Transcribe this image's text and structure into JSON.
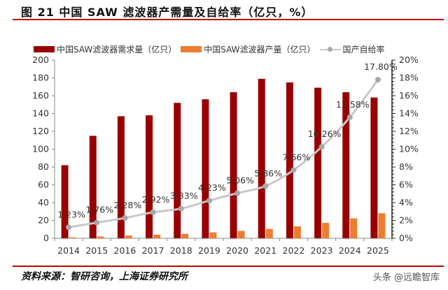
{
  "header": {
    "title": "图 21 中国 SAW 滤波器产需量及自给率（亿只，%）"
  },
  "footer": {
    "source": "资料来源：智研咨询，上海证券研究所",
    "watermark": "头条 @远瞻智库"
  },
  "colors": {
    "demand": "#990000",
    "production": "#ed7d31",
    "rate": "#c8c8c8",
    "rate_marker": "#a8a8a8",
    "rule": "#c00000"
  },
  "chart_data": {
    "type": "bar",
    "title": "图 21 中国 SAW 滤波器产需量及自给率（亿只，%）",
    "categories": [
      "2014",
      "2015",
      "2016",
      "2017",
      "2018",
      "2019",
      "2020",
      "2021",
      "2022",
      "2023",
      "2024",
      "2025"
    ],
    "series": [
      {
        "name": "中国SAW滤波器需求量（亿只）",
        "type": "bar",
        "axis": "left",
        "values": [
          82,
          115,
          137,
          138,
          152,
          156,
          164,
          179,
          175,
          169,
          164,
          158
        ]
      },
      {
        "name": "中国SAW滤波器产量（亿只）",
        "type": "bar",
        "axis": "left",
        "values": [
          1.0,
          2.0,
          3.1,
          4.0,
          5.0,
          6.6,
          8.3,
          10.5,
          13.4,
          17.3,
          22.3,
          28.1
        ]
      },
      {
        "name": "国产自给率",
        "type": "line",
        "axis": "right",
        "values": [
          1.23,
          1.76,
          2.28,
          2.92,
          3.33,
          4.23,
          5.06,
          5.86,
          7.66,
          10.26,
          13.58,
          17.8
        ],
        "labels": [
          "1.23%",
          "1.76%",
          "2.28%",
          "2.92%",
          "3.33%",
          "4.23%",
          "5.06%",
          "5.86%",
          "7.66%",
          "10.26%",
          "13.58%",
          "17.80%"
        ]
      }
    ],
    "left_axis": {
      "ylim": [
        0,
        200
      ],
      "ticks": [
        0,
        20,
        40,
        60,
        80,
        100,
        120,
        140,
        160,
        180,
        200
      ],
      "tick_labels": [
        "0",
        "20",
        "40",
        "60",
        "80",
        "100",
        "120",
        "140",
        "160",
        "180",
        "200"
      ]
    },
    "right_axis": {
      "ylim": [
        0,
        20
      ],
      "ticks": [
        0,
        2,
        4,
        6,
        8,
        10,
        12,
        14,
        16,
        18,
        20
      ],
      "tick_labels": [
        "0%",
        "2%",
        "4%",
        "6%",
        "8%",
        "10%",
        "12%",
        "14%",
        "16%",
        "18%",
        "20%"
      ]
    },
    "xlabel": "",
    "ylabel": "",
    "grid": false,
    "legend": {
      "placement": "top",
      "entries": [
        "中国SAW滤波器需求量（亿只）",
        "中国SAW滤波器产量（亿只）",
        "国产自给率"
      ]
    }
  }
}
